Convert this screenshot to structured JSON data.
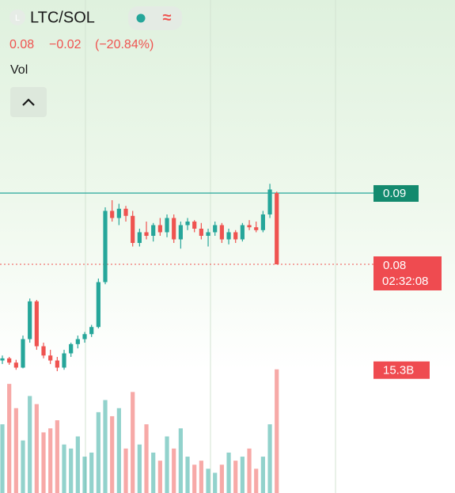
{
  "header": {
    "logo": "L",
    "symbol": "LTC/SOL",
    "icon": "≈",
    "price": "0.08",
    "change": "−0.02",
    "change_pct": "(−20.84%)",
    "indicator": "Vol"
  },
  "chart_data": {
    "type": "candlestick",
    "open": [
      0.0665,
      0.0668,
      0.0662,
      0.0655,
      0.0695,
      0.0748,
      0.0685,
      0.0672,
      0.0665,
      0.0655,
      0.0675,
      0.0688,
      0.0695,
      0.0702,
      0.0712,
      0.0775,
      0.0875,
      0.0865,
      0.0878,
      0.0868,
      0.083,
      0.0845,
      0.084,
      0.0855,
      0.0845,
      0.0865,
      0.0835,
      0.0855,
      0.086,
      0.085,
      0.084,
      0.0845,
      0.0855,
      0.0835,
      0.0845,
      0.0835,
      0.0855,
      0.0852,
      0.0848,
      0.087,
      0.09
    ],
    "high": [
      0.0672,
      0.067,
      0.0666,
      0.07,
      0.0752,
      0.075,
      0.069,
      0.068,
      0.067,
      0.068,
      0.069,
      0.07,
      0.0705,
      0.0715,
      0.078,
      0.088,
      0.089,
      0.0885,
      0.0882,
      0.0875,
      0.085,
      0.086,
      0.0858,
      0.0865,
      0.087,
      0.087,
      0.086,
      0.0865,
      0.0862,
      0.0858,
      0.085,
      0.086,
      0.0858,
      0.085,
      0.0848,
      0.0858,
      0.0862,
      0.086,
      0.0875,
      0.0913,
      0.0902
    ],
    "low": [
      0.066,
      0.0659,
      0.0652,
      0.0654,
      0.069,
      0.068,
      0.0668,
      0.066,
      0.065,
      0.0652,
      0.067,
      0.0682,
      0.069,
      0.0698,
      0.071,
      0.0772,
      0.086,
      0.0855,
      0.086,
      0.0825,
      0.0825,
      0.0835,
      0.0832,
      0.084,
      0.0838,
      0.083,
      0.0822,
      0.0848,
      0.0845,
      0.0835,
      0.0825,
      0.084,
      0.083,
      0.0828,
      0.083,
      0.0832,
      0.0848,
      0.0845,
      0.0845,
      0.0865,
      0.08
    ],
    "close": [
      0.0668,
      0.0662,
      0.0655,
      0.0695,
      0.0748,
      0.0685,
      0.0672,
      0.0665,
      0.0655,
      0.0675,
      0.0688,
      0.0695,
      0.0702,
      0.0712,
      0.0775,
      0.0875,
      0.0865,
      0.0878,
      0.0868,
      0.083,
      0.0845,
      0.084,
      0.0855,
      0.0845,
      0.0865,
      0.0835,
      0.0855,
      0.086,
      0.085,
      0.084,
      0.0845,
      0.0855,
      0.0835,
      0.0845,
      0.0835,
      0.0855,
      0.0852,
      0.0848,
      0.087,
      0.0905,
      0.08
    ],
    "volume": [
      8.5,
      13.5,
      10.5,
      6.5,
      12.0,
      11.0,
      7.5,
      8.0,
      9.0,
      6.0,
      5.5,
      7.0,
      4.5,
      5.0,
      10.0,
      11.5,
      9.5,
      10.5,
      5.5,
      12.5,
      6.0,
      8.5,
      5.0,
      4.0,
      7.0,
      5.5,
      8.0,
      4.5,
      3.5,
      4.0,
      3.0,
      2.5,
      3.5,
      5.0,
      4.0,
      4.5,
      5.5,
      3.0,
      4.5,
      8.5,
      15.3
    ],
    "ylim": [
      0.0479,
      0.1171
    ],
    "y2lim": [
      0,
      61
    ],
    "up_color": "#26a69a",
    "down_color": "#ef5350",
    "level": 0.09,
    "last_price": {
      "value": 0.08,
      "countdown": "02:32:08"
    },
    "volume_marker": {
      "value": 15.3,
      "label": "15.3B"
    }
  }
}
